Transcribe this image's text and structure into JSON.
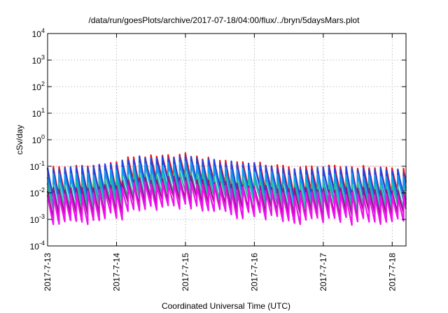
{
  "chart_data": {
    "type": "line",
    "title": "/data/run/goesPlots/archive/2017-07-18/04:00/flux/../bryn/5daysMars.plot",
    "xlabel": "Coordinated Universal Time (UTC)",
    "ylabel": "cSv/day",
    "y_scale": "log",
    "ylim": [
      0.0001,
      10000
    ],
    "xlim": [
      "2017-07-13",
      "2017-07-18 05:00"
    ],
    "grid": true,
    "grid_style": "dotted",
    "x_tick_labels": [
      "2017-7-13",
      "2017-7-14",
      "2017-7-15",
      "2017-7-16",
      "2017-7-17",
      "2017-7-18"
    ],
    "x_tick_days": [
      0,
      1,
      2,
      3,
      4,
      5
    ],
    "x_end_day": 5.2,
    "y_tick_labels": [
      {
        "base": "10",
        "exp": "-4"
      },
      {
        "base": "10",
        "exp": "-3"
      },
      {
        "base": "10",
        "exp": "-2"
      },
      {
        "base": "10",
        "exp": "-1"
      },
      {
        "base": "10",
        "exp": "0"
      },
      {
        "base": "10",
        "exp": "1"
      },
      {
        "base": "10",
        "exp": "2"
      },
      {
        "base": "10",
        "exp": "3"
      },
      {
        "base": "10",
        "exp": "4"
      }
    ],
    "y_tick_exponents": [
      -4,
      -3,
      -2,
      -1,
      0,
      1,
      2,
      3,
      4
    ],
    "reference_line": {
      "y": 0.1,
      "color": "#e8a0a0"
    },
    "cycle_days": 0.0833,
    "series": [
      {
        "color": "#ee1111",
        "peak": 0.1,
        "min": 0.01
      },
      {
        "color": "#2244dd",
        "peak": 0.09,
        "min": 0.008
      },
      {
        "color": "#1199ee",
        "peak": 0.05,
        "min": 0.005
      },
      {
        "color": "#22bb99",
        "peak": 0.025,
        "min": 0.003
      },
      {
        "color": "#991188",
        "peak": 0.015,
        "min": 0.0018
      },
      {
        "color": "#ee11ee",
        "peak": 0.01,
        "min": 0.001
      }
    ],
    "envelope_keypoints": [
      [
        0.0,
        0.9
      ],
      [
        0.6,
        1.0
      ],
      [
        1.0,
        1.4
      ],
      [
        1.3,
        2.5
      ],
      [
        1.6,
        2.2
      ],
      [
        2.0,
        2.8
      ],
      [
        2.2,
        2.1
      ],
      [
        2.6,
        1.6
      ],
      [
        3.0,
        1.3
      ],
      [
        3.5,
        0.9
      ],
      [
        4.0,
        0.95
      ],
      [
        4.5,
        0.95
      ],
      [
        5.0,
        0.85
      ],
      [
        5.2,
        0.7
      ]
    ]
  }
}
